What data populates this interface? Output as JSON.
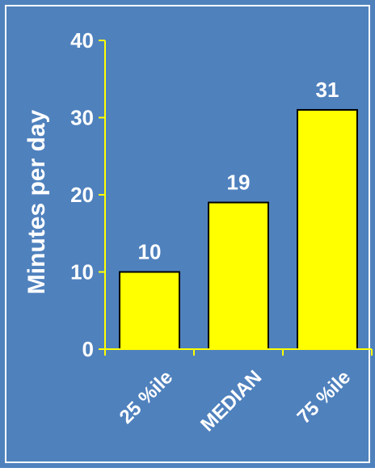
{
  "colors": {
    "background": "#4F81BD",
    "panel_border": "#ffffff",
    "bar_fill": "#FFFF00",
    "bar_stroke": "#000000",
    "axis": "#FFFF00",
    "text": "#ffffff",
    "data_label": "#ffffff"
  },
  "chart_data": {
    "type": "bar",
    "title": "",
    "xlabel": "",
    "ylabel": "Minutes per day",
    "categories": [
      "25 %ile",
      "MEDIAN",
      "75 %ile"
    ],
    "values": [
      10,
      19,
      31
    ],
    "data_labels": [
      "10",
      "19",
      "31"
    ],
    "ylim": [
      0,
      40
    ],
    "yticks": [
      0,
      10,
      20,
      30,
      40
    ],
    "ytick_labels": [
      "0",
      "10",
      "20",
      "30",
      "40"
    ],
    "grid": false,
    "legend": "none"
  }
}
